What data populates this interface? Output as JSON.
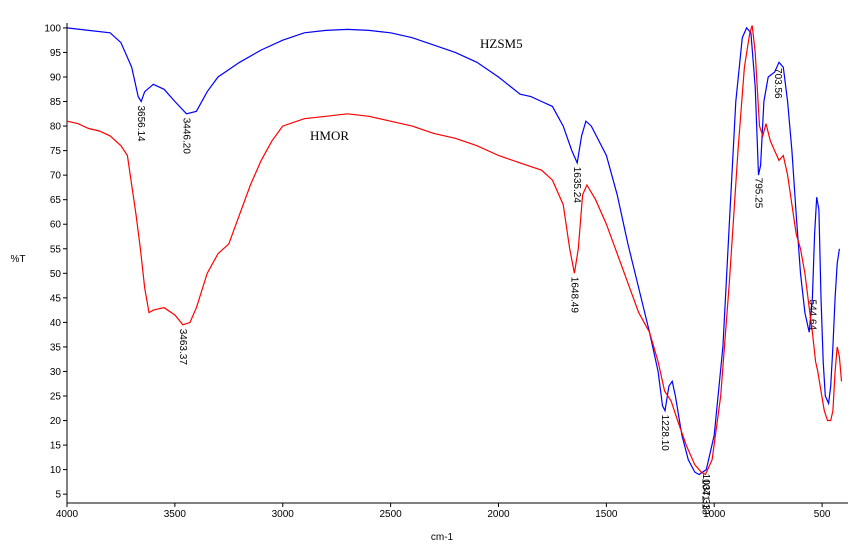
{
  "chart_data": {
    "type": "line",
    "xlabel": "cm-1",
    "ylabel": "%T",
    "xlim": [
      4000,
      380
    ],
    "xticks": [
      4000,
      3500,
      3000,
      2500,
      2000,
      1500,
      1000,
      500
    ],
    "ylim": [
      3.2,
      101
    ],
    "yticks": [
      5,
      10,
      15,
      20,
      25,
      30,
      35,
      40,
      45,
      50,
      55,
      60,
      65,
      70,
      75,
      80,
      85,
      90,
      95,
      100
    ],
    "series": [
      {
        "name": "HZSM5",
        "color": "#0000ff",
        "peaks": [
          "3656.14",
          "3446.20",
          "1635.24",
          "1228.10",
          "1037.33",
          "795.25",
          "703.56",
          "544.64"
        ],
        "x": [
          4000,
          3900,
          3800,
          3750,
          3700,
          3670,
          3656,
          3640,
          3600,
          3550,
          3500,
          3446,
          3400,
          3350,
          3300,
          3200,
          3100,
          3000,
          2900,
          2800,
          2700,
          2600,
          2500,
          2400,
          2300,
          2200,
          2100,
          2000,
          1900,
          1850,
          1800,
          1750,
          1700,
          1660,
          1635,
          1615,
          1595,
          1570,
          1500,
          1450,
          1400,
          1350,
          1300,
          1260,
          1240,
          1228,
          1210,
          1195,
          1180,
          1150,
          1120,
          1090,
          1070,
          1037,
          1000,
          960,
          930,
          900,
          870,
          850,
          830,
          810,
          795,
          785,
          770,
          750,
          720,
          700,
          680,
          660,
          640,
          620,
          600,
          580,
          560,
          545,
          535,
          525,
          515,
          505,
          495,
          485,
          470,
          460,
          450,
          440,
          430,
          420
        ],
        "values": [
          100,
          99.5,
          99,
          97,
          92,
          86,
          85,
          87,
          88.5,
          87.5,
          85,
          82.5,
          83,
          87,
          90,
          93,
          95.5,
          97.5,
          99,
          99.5,
          99.7,
          99.5,
          99,
          98,
          96.5,
          95,
          93,
          90,
          86.5,
          86,
          85,
          84,
          80,
          75,
          72.5,
          78,
          81,
          80,
          74,
          66,
          56,
          47,
          38,
          30,
          23,
          22,
          27,
          28,
          25,
          17,
          12,
          9.5,
          9,
          10,
          17,
          35,
          60,
          85,
          98,
          100,
          99,
          88,
          70,
          72,
          85,
          90,
          91,
          93,
          92,
          85,
          75,
          62,
          50,
          42,
          38,
          45,
          58,
          65.5,
          63,
          45,
          32,
          25,
          23.5,
          27,
          35,
          45,
          52,
          55
        ]
      },
      {
        "name": "HMOR",
        "color": "#ff0000",
        "peaks": [
          "3463.37",
          "1648.49",
          "1041.13"
        ],
        "x": [
          4000,
          3950,
          3900,
          3850,
          3800,
          3750,
          3720,
          3700,
          3680,
          3660,
          3640,
          3620,
          3600,
          3550,
          3500,
          3463,
          3430,
          3400,
          3350,
          3300,
          3250,
          3200,
          3150,
          3100,
          3050,
          3000,
          2900,
          2800,
          2700,
          2600,
          2500,
          2400,
          2300,
          2200,
          2100,
          2000,
          1900,
          1800,
          1750,
          1700,
          1670,
          1648,
          1630,
          1610,
          1590,
          1550,
          1500,
          1450,
          1400,
          1350,
          1300,
          1260,
          1230,
          1200,
          1170,
          1130,
          1090,
          1060,
          1041,
          1010,
          970,
          930,
          890,
          860,
          835,
          824,
          810,
          790,
          775,
          760,
          740,
          720,
          700,
          680,
          660,
          640,
          620,
          600,
          580,
          560,
          545,
          530,
          520,
          505,
          490,
          475,
          460,
          450,
          440,
          430,
          420,
          410
        ],
        "values": [
          81,
          80.5,
          79.5,
          79,
          78,
          76,
          74,
          68,
          62,
          55,
          47,
          42,
          42.5,
          43,
          41.5,
          39.5,
          40,
          43,
          50,
          54,
          56,
          62,
          68,
          73,
          77,
          80,
          81.5,
          82,
          82.5,
          82,
          81,
          80,
          78.5,
          77.5,
          76,
          74,
          72.5,
          71,
          69,
          64,
          55,
          50,
          55,
          66,
          68,
          65,
          60,
          54,
          48,
          42,
          38,
          32,
          26,
          24,
          20,
          15,
          11,
          9.5,
          9,
          12,
          25,
          48,
          75,
          92,
          99,
          100.5,
          95,
          80,
          78,
          80.5,
          77,
          75,
          73,
          74,
          70,
          64,
          58,
          55,
          50,
          43,
          38,
          32,
          30,
          26,
          22,
          20,
          20,
          22,
          30,
          35,
          33,
          28
        ]
      }
    ]
  }
}
